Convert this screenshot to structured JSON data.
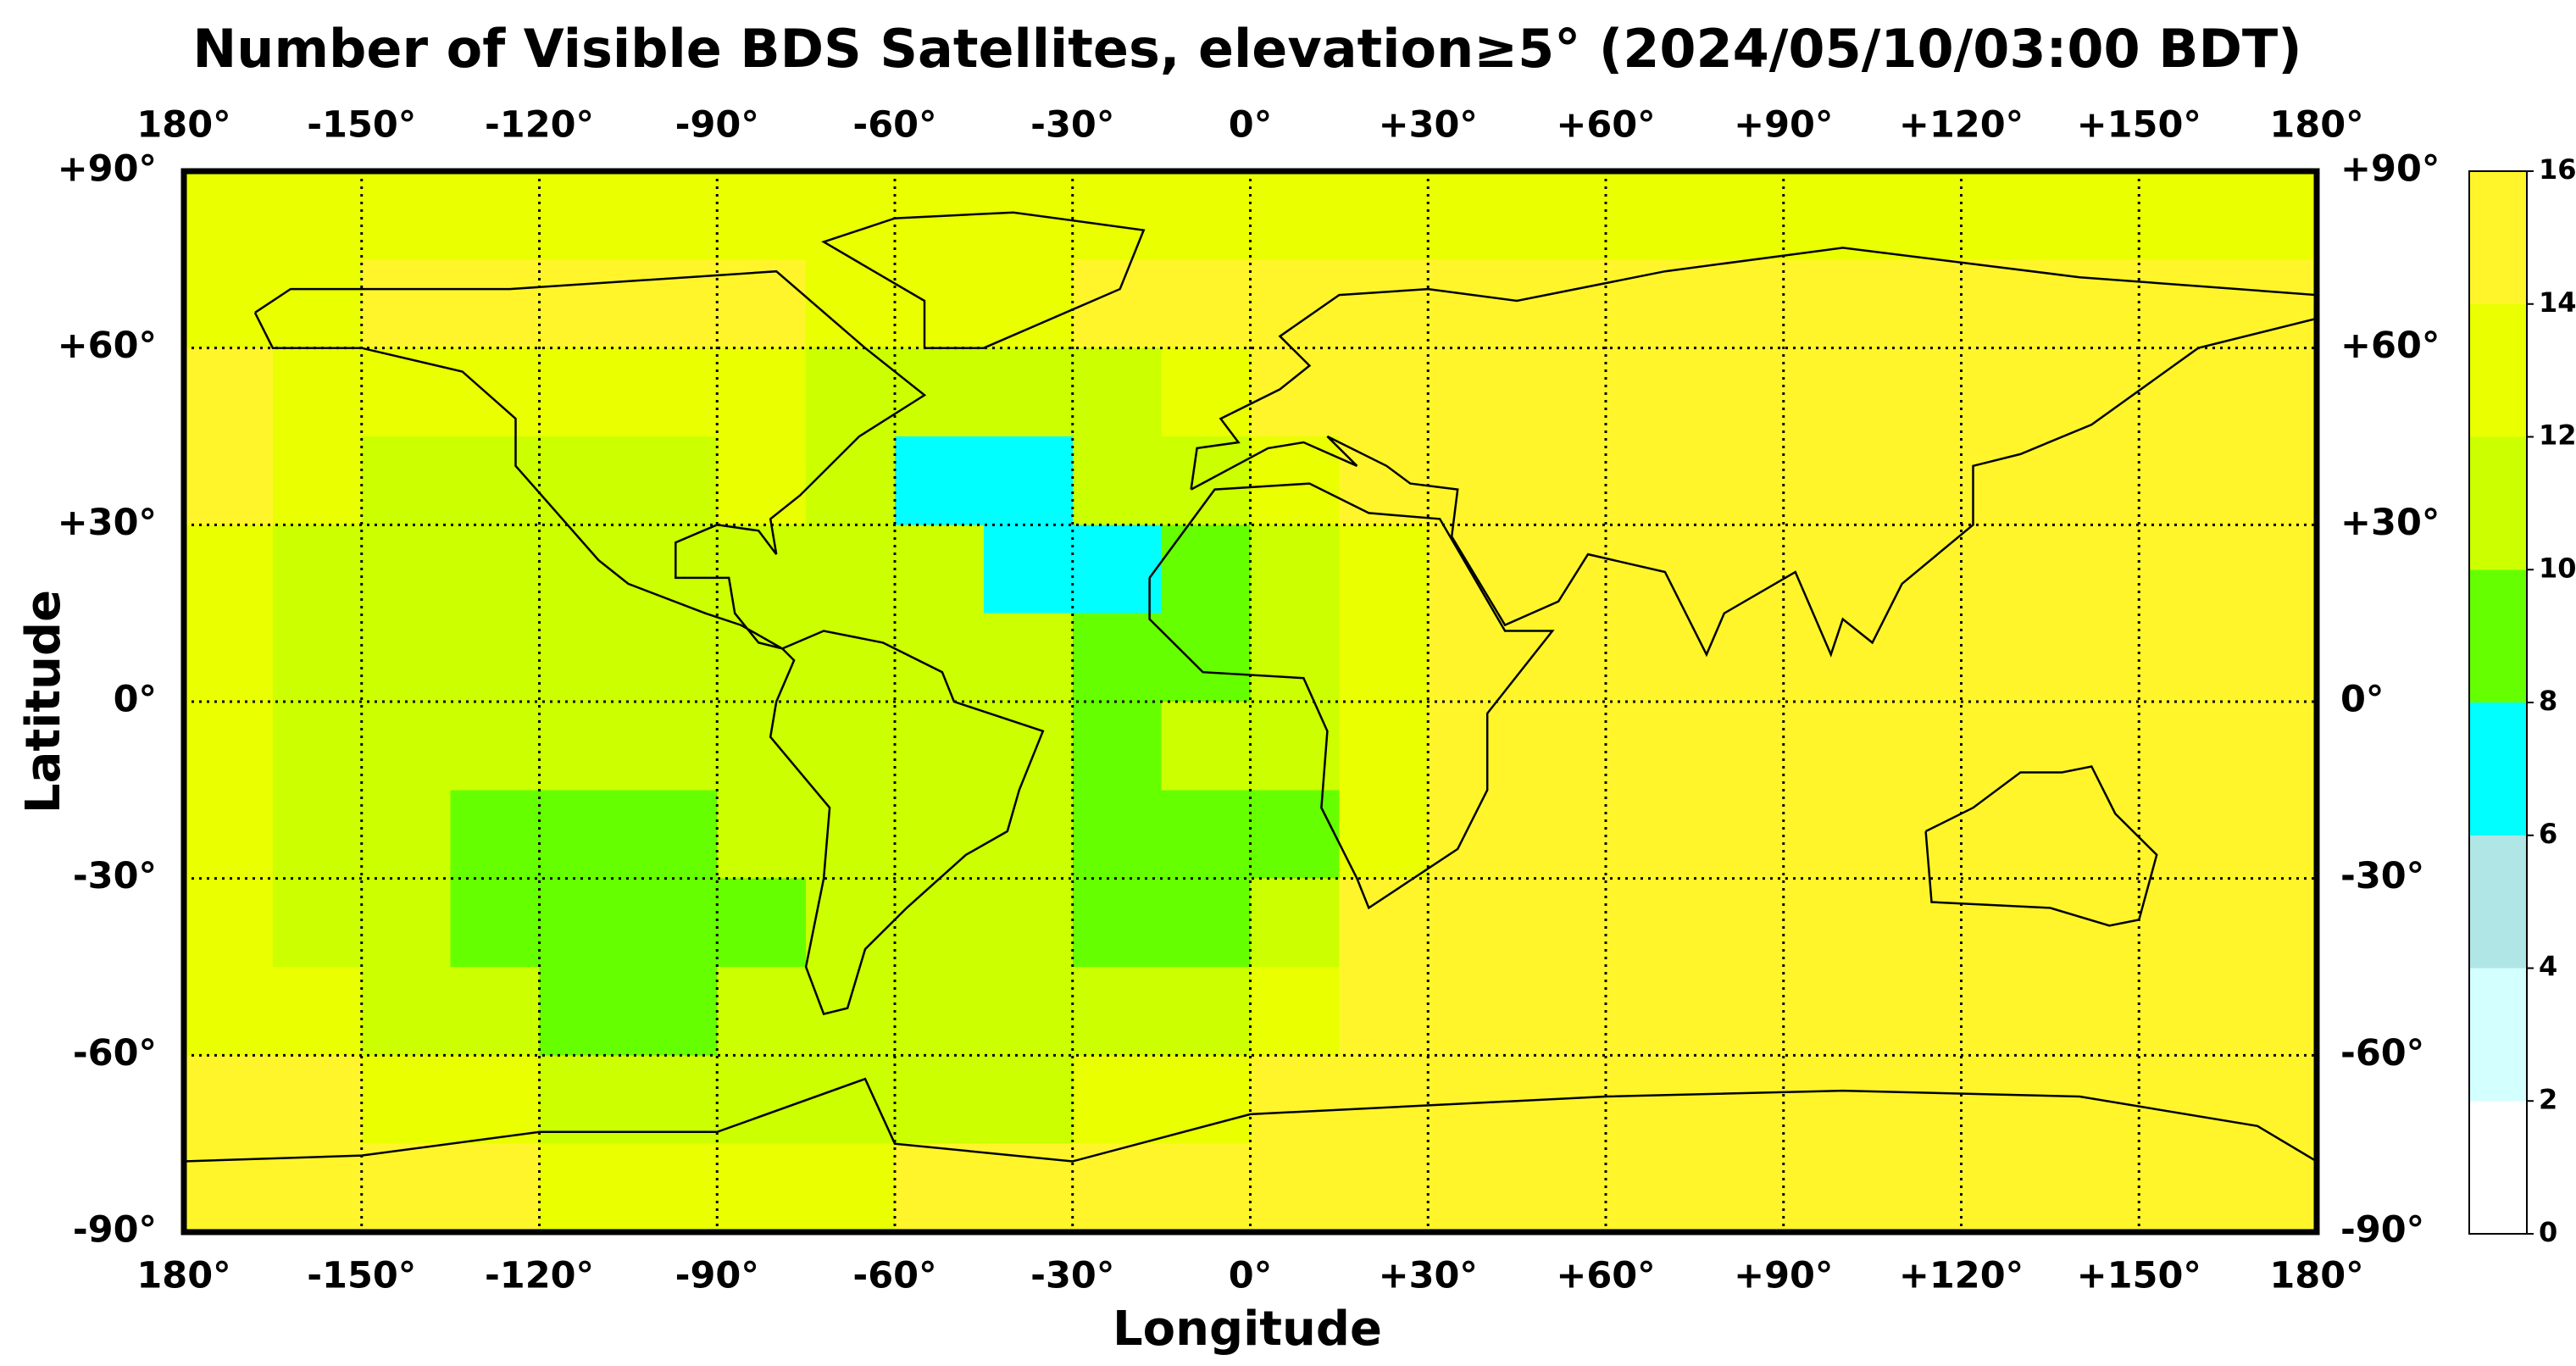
{
  "chart_data": {
    "type": "heatmap",
    "title": "Number of Visible BDS Satellites, elevation≥5° (2024/05/10/03:00 BDT)",
    "xlabel": "Longitude",
    "ylabel": "Latitude",
    "xlim": [
      -180,
      180
    ],
    "ylim": [
      -90,
      90
    ],
    "xticks": [
      {
        "value": -180,
        "label": "180°"
      },
      {
        "value": -150,
        "label": "-150°"
      },
      {
        "value": -120,
        "label": "-120°"
      },
      {
        "value": -90,
        "label": "-90°"
      },
      {
        "value": -60,
        "label": "-60°"
      },
      {
        "value": -30,
        "label": "-30°"
      },
      {
        "value": 0,
        "label": "0°"
      },
      {
        "value": 30,
        "label": "+30°"
      },
      {
        "value": 60,
        "label": "+60°"
      },
      {
        "value": 90,
        "label": "+90°"
      },
      {
        "value": 120,
        "label": "+120°"
      },
      {
        "value": 150,
        "label": "+150°"
      },
      {
        "value": 180,
        "label": "180°"
      }
    ],
    "yticks": [
      {
        "value": 90,
        "label": "+90°"
      },
      {
        "value": 60,
        "label": "+60°"
      },
      {
        "value": 30,
        "label": "+30°"
      },
      {
        "value": 0,
        "label": "0°"
      },
      {
        "value": -30,
        "label": "-30°"
      },
      {
        "value": -60,
        "label": "-60°"
      },
      {
        "value": -90,
        "label": "-90°"
      }
    ],
    "grid": true,
    "xbins": [
      -180,
      -165,
      -150,
      -135,
      -120,
      -105,
      -90,
      -75,
      -60,
      -45,
      -30,
      -15,
      0,
      15,
      30,
      45,
      60,
      75,
      90,
      105,
      120,
      135,
      150,
      165,
      180
    ],
    "ybins": [
      90,
      75,
      60,
      45,
      30,
      15,
      0,
      -15,
      -30,
      -45,
      -60,
      -75,
      -90
    ],
    "values": [
      [
        13,
        13,
        13,
        13,
        13,
        13,
        13,
        13,
        13,
        13,
        13,
        13,
        13,
        13,
        13,
        13,
        13,
        13,
        13,
        13,
        13,
        13,
        13,
        13
      ],
      [
        13,
        13,
        15,
        15,
        15,
        15,
        15,
        13,
        13,
        13,
        15,
        15,
        15,
        15,
        15,
        15,
        15,
        15,
        15,
        15,
        15,
        15,
        15,
        15
      ],
      [
        15,
        13,
        13,
        13,
        13,
        13,
        13,
        11,
        11,
        11,
        11,
        13,
        15,
        15,
        15,
        15,
        15,
        15,
        15,
        15,
        15,
        15,
        15,
        15
      ],
      [
        15,
        13,
        11,
        11,
        11,
        11,
        13,
        11,
        7,
        7,
        11,
        11,
        13,
        15,
        15,
        15,
        15,
        15,
        15,
        15,
        15,
        15,
        15,
        15
      ],
      [
        13,
        11,
        11,
        11,
        11,
        11,
        11,
        11,
        11,
        7,
        7,
        9,
        11,
        13,
        15,
        15,
        15,
        15,
        15,
        15,
        15,
        15,
        15,
        15
      ],
      [
        13,
        11,
        11,
        11,
        11,
        11,
        11,
        11,
        11,
        11,
        9,
        9,
        11,
        13,
        15,
        15,
        15,
        15,
        15,
        15,
        15,
        15,
        15,
        15
      ],
      [
        13,
        11,
        11,
        11,
        11,
        11,
        11,
        11,
        11,
        11,
        9,
        11,
        11,
        13,
        15,
        15,
        15,
        15,
        15,
        15,
        15,
        15,
        15,
        15
      ],
      [
        13,
        11,
        11,
        9,
        9,
        9,
        11,
        11,
        11,
        11,
        9,
        9,
        9,
        13,
        15,
        15,
        15,
        15,
        15,
        15,
        15,
        15,
        15,
        15
      ],
      [
        13,
        11,
        11,
        9,
        9,
        9,
        9,
        11,
        11,
        11,
        9,
        9,
        11,
        15,
        15,
        15,
        15,
        15,
        15,
        15,
        15,
        15,
        15,
        15
      ],
      [
        13,
        13,
        11,
        11,
        9,
        9,
        11,
        11,
        11,
        11,
        11,
        11,
        13,
        15,
        15,
        15,
        15,
        15,
        15,
        15,
        15,
        15,
        15,
        15
      ],
      [
        15,
        15,
        13,
        13,
        11,
        11,
        11,
        11,
        11,
        11,
        13,
        13,
        15,
        15,
        15,
        15,
        15,
        15,
        15,
        15,
        15,
        15,
        15,
        15
      ],
      [
        15,
        15,
        15,
        15,
        13,
        13,
        13,
        13,
        15,
        15,
        15,
        15,
        15,
        15,
        15,
        15,
        15,
        15,
        15,
        15,
        15,
        15,
        15,
        15
      ]
    ],
    "colorbar": {
      "ticks": [
        0,
        2,
        4,
        6,
        8,
        10,
        12,
        14,
        16
      ],
      "colors": [
        "#ffffff",
        "#d4ffff",
        "#b0e6e6",
        "#00ffff",
        "#66ff00",
        "#ccff00",
        "#eaff00",
        "#fff52a"
      ]
    }
  }
}
